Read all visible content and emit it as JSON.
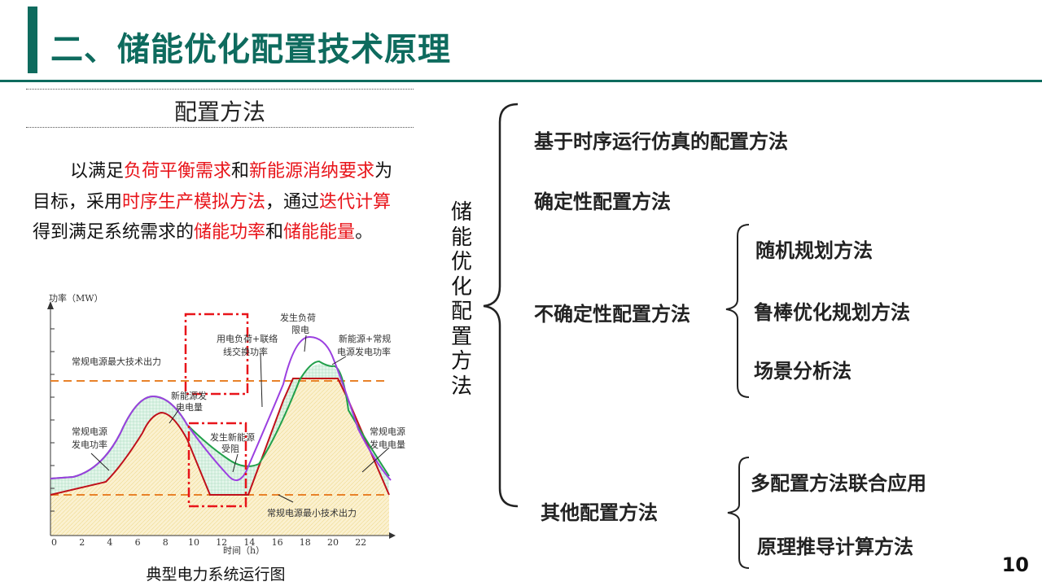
{
  "title": "二、储能优化配置技术原理",
  "section_title": "配置方法",
  "description": [
    {
      "text": "以满足",
      "hl": false
    },
    {
      "text": "负荷平衡需求",
      "hl": true
    },
    {
      "text": "和",
      "hl": false
    },
    {
      "text": "新能源消纳要求",
      "hl": true
    },
    {
      "text": "为目标，采用",
      "hl": false
    },
    {
      "text": "时序生产模拟方法",
      "hl": true
    },
    {
      "text": "，通过",
      "hl": false
    },
    {
      "text": "迭代计算",
      "hl": true
    },
    {
      "text": "得到满足系统需求的",
      "hl": false
    },
    {
      "text": "储能功率",
      "hl": true
    },
    {
      "text": "和",
      "hl": false
    },
    {
      "text": "储能能量",
      "hl": true
    },
    {
      "text": "。",
      "hl": false
    }
  ],
  "colors": {
    "accent": "#0e6b5e",
    "highlight": "#e8141a",
    "dashed_box": "#e8141a",
    "purple_curve": "#9b3fe0",
    "green_curve": "#22a04b",
    "red_curve": "#c0101a",
    "orange_dash": "#e8822a"
  },
  "chart": {
    "ylabel": "功率（MW）",
    "xlabel": "时间（h）",
    "x_ticks": [
      "0",
      "2",
      "4",
      "6",
      "8",
      "10",
      "12",
      "14",
      "16",
      "18",
      "20",
      "22"
    ],
    "caption": "典型电力系统运行图",
    "annotations": {
      "max_output": "常规电源最大技术出力",
      "min_output": "常规电源最小技术出力",
      "conv_power_1": "常规电源",
      "conv_power_2": "发电功率",
      "conv_energy_1": "常规电源",
      "conv_energy_2": "发电电量",
      "renew_energy_1": "新能源发",
      "renew_energy_2": "电电量",
      "curtail_1": "发生新能源",
      "curtail_2": "受阻",
      "load_tie_1": "用电负荷+联络",
      "load_tie_2": "线交换功率",
      "load_limit_1": "发生负荷",
      "load_limit_2": "限电",
      "renew_conv_1": "新能源+常规",
      "renew_conv_2": "电源发电功率"
    }
  },
  "vertical_label": [
    "储",
    "能",
    "优",
    "化",
    "配",
    "置",
    "方",
    "法"
  ],
  "methods": {
    "m1": "基于时序运行仿真的配置方法",
    "m2": "确定性配置方法",
    "m3": "不确定性配置方法",
    "m3_sub": [
      "随机规划方法",
      "鲁棒优化规划方法",
      "场景分析法"
    ],
    "m4": "其他配置方法",
    "m4_sub": [
      "多配置方法联合应用",
      "原理推导计算方法"
    ]
  },
  "page_number": "10"
}
